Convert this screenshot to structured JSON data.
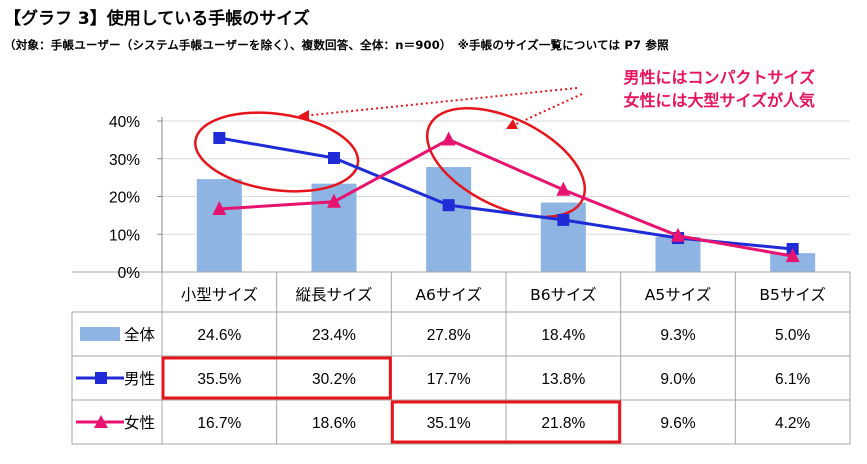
{
  "header": {
    "title": "【グラフ 3】使用している手帳のサイズ",
    "subtitle": "（対象：手帳ユーザー（システム手帳ユーザーを除く）、複数回答、全体：n＝900）　※手帳のサイズ一覧については P7 参照"
  },
  "callout": {
    "line1": "男性にはコンパクトサイズ",
    "line2": "女性には大型サイズが人気"
  },
  "colors": {
    "overall": "#8eb4e3",
    "male": "#1f2bd6",
    "female": "#e8136e",
    "highlight": "#e8141c",
    "grid": "#d9d9d9"
  },
  "chart_data": {
    "type": "bar",
    "categories": [
      "小型サイズ",
      "縦長サイズ",
      "A6サイズ",
      "B6サイズ",
      "A5サイズ",
      "B5サイズ"
    ],
    "ylim": [
      0,
      40
    ],
    "yticks": [
      "0%",
      "10%",
      "20%",
      "30%",
      "40%"
    ],
    "series": [
      {
        "name": "全体",
        "kind": "bar",
        "values": [
          24.6,
          23.4,
          27.8,
          18.4,
          9.3,
          5.0
        ],
        "labels": [
          "24.6%",
          "23.4%",
          "27.8%",
          "18.4%",
          "9.3%",
          "5.0%"
        ]
      },
      {
        "name": "男性",
        "kind": "line",
        "marker": "square",
        "values": [
          35.5,
          30.2,
          17.7,
          13.8,
          9.0,
          6.1
        ],
        "labels": [
          "35.5%",
          "30.2%",
          "17.7%",
          "13.8%",
          "9.0%",
          "6.1%"
        ]
      },
      {
        "name": "女性",
        "kind": "line",
        "marker": "triangle",
        "values": [
          16.7,
          18.6,
          35.1,
          21.8,
          9.6,
          4.2
        ],
        "labels": [
          "16.7%",
          "18.6%",
          "35.1%",
          "21.8%",
          "9.6%",
          "4.2%"
        ]
      }
    ],
    "highlights": [
      {
        "series": "男性",
        "categories": [
          "小型サイズ",
          "縦長サイズ"
        ]
      },
      {
        "series": "女性",
        "categories": [
          "A6サイズ",
          "B6サイズ"
        ]
      }
    ]
  }
}
